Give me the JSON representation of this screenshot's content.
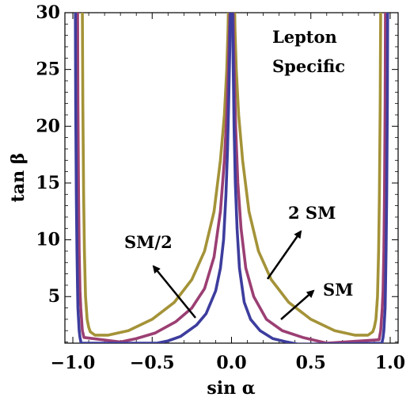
{
  "chart_data": {
    "type": "line",
    "title": "",
    "xlabel": "sin α",
    "ylabel": "tan β",
    "xlim": [
      -1.05,
      1.05
    ],
    "ylim": [
      0.9,
      30
    ],
    "x_ticks": [
      -1.0,
      -0.5,
      0.0,
      0.5,
      1.0
    ],
    "x_tick_labels": [
      "−1.0",
      "−0.5",
      "0.0",
      "0.5",
      "1.0"
    ],
    "y_ticks": [
      5,
      10,
      15,
      20,
      25,
      30
    ],
    "y_tick_labels": [
      "5",
      "10",
      "15",
      "20",
      "25",
      "30"
    ],
    "grid": false,
    "series": [
      {
        "name": "SM/2",
        "color": "#3d3d9e",
        "x": [
          -0.984,
          -0.982,
          -0.978,
          -0.974,
          -0.97,
          -0.968,
          -0.96,
          -0.955,
          -0.948,
          -0.47,
          -0.4,
          -0.32,
          -0.22,
          -0.16,
          -0.1,
          -0.07,
          -0.05,
          -0.035,
          -0.025,
          -0.018,
          -0.012,
          -0.009,
          -0.007,
          -0.006,
          0.006,
          0.008,
          0.011,
          0.016,
          0.024,
          0.035,
          0.05,
          0.08,
          0.12,
          0.18,
          0.26,
          0.35,
          0.42,
          0.948,
          0.955,
          0.96,
          0.968,
          0.97,
          0.974,
          0.978,
          0.982,
          0.984
        ],
        "y": [
          30,
          22,
          14,
          9,
          5.5,
          4,
          2,
          1.4,
          0.9,
          0.9,
          1.1,
          1.5,
          2.5,
          3.5,
          5.5,
          7.5,
          10,
          14,
          18,
          22,
          26,
          28.5,
          29.5,
          30,
          30,
          28,
          25,
          20,
          15,
          11,
          7.5,
          4.5,
          3,
          2,
          1.3,
          1.0,
          0.8,
          0.9,
          1.4,
          2,
          4,
          5.5,
          9,
          14,
          22,
          30
        ]
      },
      {
        "name": "SM",
        "color": "#9b3f73",
        "x": [
          -0.97,
          -0.968,
          -0.964,
          -0.96,
          -0.955,
          -0.95,
          -0.94,
          -0.93,
          -0.7,
          -0.6,
          -0.48,
          -0.35,
          -0.25,
          -0.17,
          -0.11,
          -0.07,
          -0.045,
          -0.03,
          -0.02,
          -0.014,
          -0.011,
          -0.01,
          0.01,
          0.012,
          0.017,
          0.026,
          0.04,
          0.06,
          0.09,
          0.14,
          0.22,
          0.32,
          0.45,
          0.6,
          0.93,
          0.94,
          0.95,
          0.955,
          0.96,
          0.964,
          0.968,
          0.97
        ],
        "y": [
          30,
          22,
          14,
          9,
          5.5,
          4,
          2,
          1.4,
          1.0,
          1.3,
          1.8,
          2.8,
          4,
          5.7,
          8.5,
          12.5,
          17,
          21,
          25,
          28,
          29.5,
          30,
          30,
          28,
          25,
          20,
          15,
          11,
          7.5,
          5,
          3,
          2,
          1.4,
          0.9,
          1.2,
          2,
          4,
          5.5,
          9,
          14,
          22,
          30
        ]
      },
      {
        "name": "2 SM",
        "color": "#a49338",
        "x": [
          -0.94,
          -0.937,
          -0.932,
          -0.927,
          -0.92,
          -0.91,
          -0.9,
          -0.89,
          -0.86,
          -0.78,
          -0.65,
          -0.5,
          -0.36,
          -0.25,
          -0.17,
          -0.11,
          -0.07,
          -0.045,
          -0.03,
          -0.022,
          -0.02,
          0.02,
          0.022,
          0.03,
          0.045,
          0.07,
          0.11,
          0.17,
          0.25,
          0.36,
          0.5,
          0.65,
          0.78,
          0.86,
          0.89,
          0.9,
          0.91,
          0.92,
          0.927,
          0.932,
          0.937,
          0.94
        ],
        "y": [
          30,
          22,
          14,
          9,
          5,
          3,
          2.3,
          1.9,
          1.6,
          1.6,
          2.0,
          3.0,
          4.5,
          6.5,
          9,
          12.5,
          17,
          21,
          25,
          28.5,
          30,
          30,
          28.5,
          25,
          21,
          17,
          12.5,
          9,
          6.5,
          4.5,
          3.0,
          2.0,
          1.6,
          1.6,
          1.9,
          2.3,
          3,
          5,
          9,
          14,
          22,
          30
        ]
      }
    ],
    "annotations": [
      {
        "text": "Lepton",
        "kind": "header"
      },
      {
        "text": "Specific",
        "kind": "header"
      },
      {
        "text": "SM/2",
        "series": "SM/2"
      },
      {
        "text": "2 SM",
        "series": "2 SM"
      },
      {
        "text": "SM",
        "series": "SM"
      }
    ]
  }
}
